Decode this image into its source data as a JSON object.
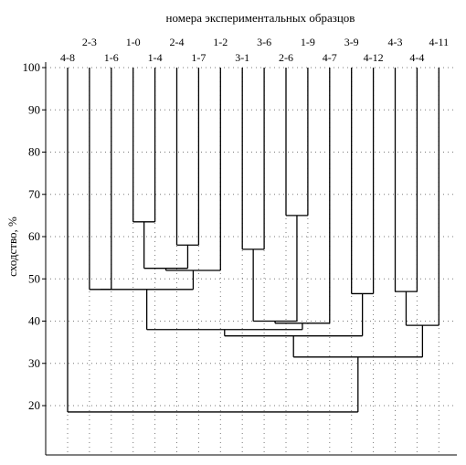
{
  "chart_data": {
    "type": "dendrogram",
    "title": "номера экспериментальных образцов",
    "ylabel": "сходство, %",
    "ylim": [
      10,
      100
    ],
    "yticks": [
      20,
      30,
      40,
      50,
      60,
      70,
      80,
      90,
      100
    ],
    "grid": true,
    "leaves": [
      "4-8",
      "2-3",
      "1-6",
      "1-0",
      "1-4",
      "2-4",
      "1-7",
      "1-2",
      "3-1",
      "3-6",
      "2-6",
      "1-9",
      "4-7",
      "3-9",
      "4-12",
      "4-3",
      "4-4",
      "4-11"
    ],
    "merges": [
      {
        "id": "m1",
        "children": [
          "1-0",
          "1-4"
        ],
        "similarity": 63.5
      },
      {
        "id": "m2",
        "children": [
          "2-4",
          "1-7"
        ],
        "similarity": 58
      },
      {
        "id": "m3",
        "children": [
          "m1",
          "m2"
        ],
        "similarity": 52.5
      },
      {
        "id": "m4",
        "children": [
          "m3",
          "1-2"
        ],
        "similarity": 52
      },
      {
        "id": "m5",
        "children": [
          "2-3",
          "1-6"
        ],
        "similarity": 47.5
      },
      {
        "id": "m6",
        "children": [
          "m5",
          "m4"
        ],
        "similarity": 47.5
      },
      {
        "id": "m7",
        "children": [
          "2-6",
          "1-9"
        ],
        "similarity": 65
      },
      {
        "id": "m8",
        "children": [
          "3-1",
          "3-6"
        ],
        "similarity": 57
      },
      {
        "id": "m9",
        "children": [
          "m8",
          "m7"
        ],
        "similarity": 40
      },
      {
        "id": "m10",
        "children": [
          "m9",
          "4-7"
        ],
        "similarity": 39.5
      },
      {
        "id": "m11",
        "children": [
          "m6",
          "m10"
        ],
        "similarity": 38
      },
      {
        "id": "m12",
        "children": [
          "3-9",
          "4-12"
        ],
        "similarity": 46.5
      },
      {
        "id": "m13",
        "children": [
          "m11",
          "m12"
        ],
        "similarity": 36.5
      },
      {
        "id": "m14",
        "children": [
          "4-3",
          "4-4"
        ],
        "similarity": 47
      },
      {
        "id": "m15",
        "children": [
          "m14",
          "4-11"
        ],
        "similarity": 39
      },
      {
        "id": "m16",
        "children": [
          "m13",
          "m15"
        ],
        "similarity": 31.5
      },
      {
        "id": "m17",
        "children": [
          "4-8",
          "m16"
        ],
        "similarity": 18.5
      }
    ]
  }
}
